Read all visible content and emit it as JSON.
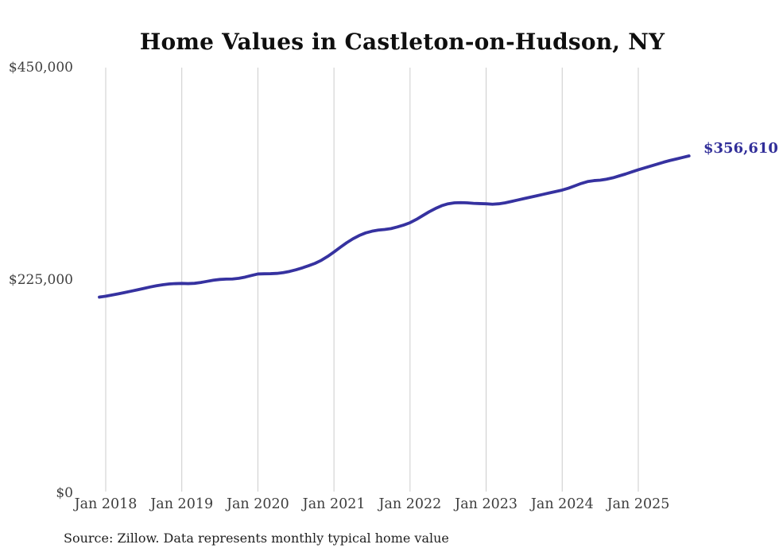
{
  "chart_data": {
    "type": "line",
    "title": "Home Values in Castleton-on-Hudson, NY",
    "source_note": "Source: Zillow. Data represents monthly typical home value",
    "end_label": "$356,610",
    "x_ticks": [
      "Jan 2018",
      "Jan 2019",
      "Jan 2020",
      "Jan 2021",
      "Jan 2022",
      "Jan 2023",
      "Jan 2024",
      "Jan 2025"
    ],
    "y_ticks": [
      {
        "label": "$450,000",
        "value": 450000
      },
      {
        "label": "$225,000",
        "value": 225000
      },
      {
        "label": "$0",
        "value": 0
      }
    ],
    "ylim": [
      0,
      450000
    ],
    "grid": "vertical-only",
    "legend": "none",
    "series": [
      {
        "name": "Monthly typical home value",
        "color": "#3632a0",
        "start_month": "2017-12",
        "frequency": "monthly",
        "final_value": 356610,
        "values": [
          207300,
          208300,
          209500,
          210800,
          212200,
          213600,
          215000,
          216500,
          218000,
          219300,
          220400,
          221200,
          221600,
          221800,
          221600,
          221900,
          222800,
          224000,
          225200,
          226000,
          226400,
          226500,
          227200,
          228500,
          230200,
          231800,
          232000,
          232100,
          232400,
          233200,
          234500,
          236200,
          238200,
          240500,
          243000,
          246200,
          250300,
          255000,
          260000,
          264800,
          269000,
          272500,
          275200,
          277000,
          278200,
          278800,
          279800,
          281500,
          283500,
          286000,
          289500,
          293500,
          297500,
          301000,
          304000,
          306000,
          307000,
          307200,
          307000,
          306500,
          306200,
          306000,
          305500,
          306000,
          307000,
          308500,
          310000,
          311500,
          313000,
          314500,
          316000,
          317500,
          319000,
          320500,
          322500,
          325000,
          327500,
          329500,
          330500,
          331000,
          332000,
          333500,
          335500,
          337500,
          339800,
          342000,
          344000,
          346000,
          348000,
          350000,
          351800,
          353400,
          355000,
          356610
        ]
      }
    ]
  },
  "colors": {
    "line": "#3632a0",
    "end_label": "#312e99",
    "gridline": "#cccccc",
    "axis_text": "#404040",
    "title_text": "#0f0f0f",
    "source_text": "#1f1f1f",
    "background": "#ffffff"
  }
}
